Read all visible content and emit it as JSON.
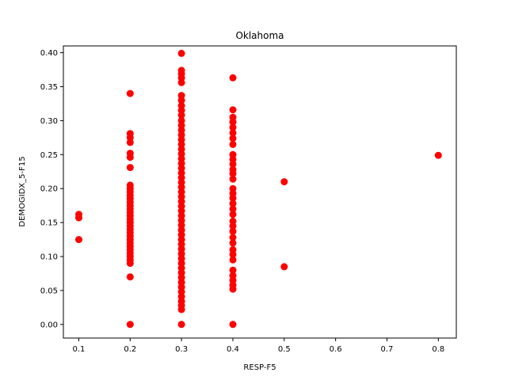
{
  "chart_data": {
    "type": "scatter",
    "title": "Oklahoma",
    "xlabel": "RESP-F5",
    "ylabel": "DEMOGIDX_5-F15",
    "xlim": [
      0.07,
      0.835
    ],
    "ylim": [
      -0.02,
      0.41
    ],
    "grid": false,
    "marker_color": "#ff0000",
    "xticks": [
      0.1,
      0.2,
      0.3,
      0.4,
      0.5,
      0.6,
      0.7,
      0.8
    ],
    "xtick_labels": [
      "0.1",
      "0.2",
      "0.3",
      "0.4",
      "0.5",
      "0.6",
      "0.7",
      "0.8"
    ],
    "yticks": [
      0.0,
      0.05,
      0.1,
      0.15,
      0.2,
      0.25,
      0.3,
      0.35,
      0.4
    ],
    "ytick_labels": [
      "0.00",
      "0.05",
      "0.10",
      "0.15",
      "0.20",
      "0.25",
      "0.30",
      "0.35",
      "0.40"
    ],
    "series": [
      {
        "points": [
          {
            "x": 0.1,
            "y": 0.162
          },
          {
            "x": 0.1,
            "y": 0.157
          },
          {
            "x": 0.1,
            "y": 0.125
          },
          {
            "x": 0.2,
            "y": 0.34
          },
          {
            "x": 0.2,
            "y": 0.281
          },
          {
            "x": 0.2,
            "y": 0.275
          },
          {
            "x": 0.2,
            "y": 0.268
          },
          {
            "x": 0.2,
            "y": 0.252
          },
          {
            "x": 0.2,
            "y": 0.246
          },
          {
            "x": 0.2,
            "y": 0.231
          },
          {
            "x": 0.2,
            "y": 0.205
          },
          {
            "x": 0.2,
            "y": 0.2
          },
          {
            "x": 0.2,
            "y": 0.195
          },
          {
            "x": 0.2,
            "y": 0.19
          },
          {
            "x": 0.2,
            "y": 0.185
          },
          {
            "x": 0.2,
            "y": 0.18
          },
          {
            "x": 0.2,
            "y": 0.175
          },
          {
            "x": 0.2,
            "y": 0.17
          },
          {
            "x": 0.2,
            "y": 0.165
          },
          {
            "x": 0.2,
            "y": 0.16
          },
          {
            "x": 0.2,
            "y": 0.155
          },
          {
            "x": 0.2,
            "y": 0.15
          },
          {
            "x": 0.2,
            "y": 0.145
          },
          {
            "x": 0.2,
            "y": 0.14
          },
          {
            "x": 0.2,
            "y": 0.135
          },
          {
            "x": 0.2,
            "y": 0.13
          },
          {
            "x": 0.2,
            "y": 0.125
          },
          {
            "x": 0.2,
            "y": 0.12
          },
          {
            "x": 0.2,
            "y": 0.115
          },
          {
            "x": 0.2,
            "y": 0.11
          },
          {
            "x": 0.2,
            "y": 0.105
          },
          {
            "x": 0.2,
            "y": 0.1
          },
          {
            "x": 0.2,
            "y": 0.095
          },
          {
            "x": 0.2,
            "y": 0.09
          },
          {
            "x": 0.2,
            "y": 0.07
          },
          {
            "x": 0.2,
            "y": 0.0
          },
          {
            "x": 0.3,
            "y": 0.399
          },
          {
            "x": 0.3,
            "y": 0.374
          },
          {
            "x": 0.3,
            "y": 0.369
          },
          {
            "x": 0.3,
            "y": 0.363
          },
          {
            "x": 0.3,
            "y": 0.356
          },
          {
            "x": 0.3,
            "y": 0.337
          },
          {
            "x": 0.3,
            "y": 0.33
          },
          {
            "x": 0.3,
            "y": 0.322
          },
          {
            "x": 0.3,
            "y": 0.315
          },
          {
            "x": 0.3,
            "y": 0.308
          },
          {
            "x": 0.3,
            "y": 0.3
          },
          {
            "x": 0.3,
            "y": 0.293
          },
          {
            "x": 0.3,
            "y": 0.286
          },
          {
            "x": 0.3,
            "y": 0.279
          },
          {
            "x": 0.3,
            "y": 0.272
          },
          {
            "x": 0.3,
            "y": 0.265
          },
          {
            "x": 0.3,
            "y": 0.258
          },
          {
            "x": 0.3,
            "y": 0.251
          },
          {
            "x": 0.3,
            "y": 0.244
          },
          {
            "x": 0.3,
            "y": 0.237
          },
          {
            "x": 0.3,
            "y": 0.23
          },
          {
            "x": 0.3,
            "y": 0.223
          },
          {
            "x": 0.3,
            "y": 0.216
          },
          {
            "x": 0.3,
            "y": 0.209
          },
          {
            "x": 0.3,
            "y": 0.202
          },
          {
            "x": 0.3,
            "y": 0.195
          },
          {
            "x": 0.3,
            "y": 0.188
          },
          {
            "x": 0.3,
            "y": 0.181
          },
          {
            "x": 0.3,
            "y": 0.174
          },
          {
            "x": 0.3,
            "y": 0.167
          },
          {
            "x": 0.3,
            "y": 0.16
          },
          {
            "x": 0.3,
            "y": 0.153
          },
          {
            "x": 0.3,
            "y": 0.146
          },
          {
            "x": 0.3,
            "y": 0.139
          },
          {
            "x": 0.3,
            "y": 0.132
          },
          {
            "x": 0.3,
            "y": 0.125
          },
          {
            "x": 0.3,
            "y": 0.118
          },
          {
            "x": 0.3,
            "y": 0.111
          },
          {
            "x": 0.3,
            "y": 0.104
          },
          {
            "x": 0.3,
            "y": 0.097
          },
          {
            "x": 0.3,
            "y": 0.09
          },
          {
            "x": 0.3,
            "y": 0.083
          },
          {
            "x": 0.3,
            "y": 0.076
          },
          {
            "x": 0.3,
            "y": 0.069
          },
          {
            "x": 0.3,
            "y": 0.062
          },
          {
            "x": 0.3,
            "y": 0.055
          },
          {
            "x": 0.3,
            "y": 0.048
          },
          {
            "x": 0.3,
            "y": 0.041
          },
          {
            "x": 0.3,
            "y": 0.034
          },
          {
            "x": 0.3,
            "y": 0.028
          },
          {
            "x": 0.3,
            "y": 0.022
          },
          {
            "x": 0.3,
            "y": 0.0
          },
          {
            "x": 0.4,
            "y": 0.363
          },
          {
            "x": 0.4,
            "y": 0.316
          },
          {
            "x": 0.4,
            "y": 0.305
          },
          {
            "x": 0.4,
            "y": 0.298
          },
          {
            "x": 0.4,
            "y": 0.29
          },
          {
            "x": 0.4,
            "y": 0.282
          },
          {
            "x": 0.4,
            "y": 0.274
          },
          {
            "x": 0.4,
            "y": 0.265
          },
          {
            "x": 0.4,
            "y": 0.25
          },
          {
            "x": 0.4,
            "y": 0.243
          },
          {
            "x": 0.4,
            "y": 0.236
          },
          {
            "x": 0.4,
            "y": 0.228
          },
          {
            "x": 0.4,
            "y": 0.222
          },
          {
            "x": 0.4,
            "y": 0.214
          },
          {
            "x": 0.4,
            "y": 0.2
          },
          {
            "x": 0.4,
            "y": 0.193
          },
          {
            "x": 0.4,
            "y": 0.186
          },
          {
            "x": 0.4,
            "y": 0.178
          },
          {
            "x": 0.4,
            "y": 0.17
          },
          {
            "x": 0.4,
            "y": 0.162
          },
          {
            "x": 0.4,
            "y": 0.152
          },
          {
            "x": 0.4,
            "y": 0.145
          },
          {
            "x": 0.4,
            "y": 0.137
          },
          {
            "x": 0.4,
            "y": 0.128
          },
          {
            "x": 0.4,
            "y": 0.12
          },
          {
            "x": 0.4,
            "y": 0.11
          },
          {
            "x": 0.4,
            "y": 0.103
          },
          {
            "x": 0.4,
            "y": 0.095
          },
          {
            "x": 0.4,
            "y": 0.08
          },
          {
            "x": 0.4,
            "y": 0.072
          },
          {
            "x": 0.4,
            "y": 0.065
          },
          {
            "x": 0.4,
            "y": 0.058
          },
          {
            "x": 0.4,
            "y": 0.052
          },
          {
            "x": 0.4,
            "y": 0.0
          },
          {
            "x": 0.5,
            "y": 0.21
          },
          {
            "x": 0.5,
            "y": 0.085
          },
          {
            "x": 0.8,
            "y": 0.249
          }
        ]
      }
    ]
  }
}
